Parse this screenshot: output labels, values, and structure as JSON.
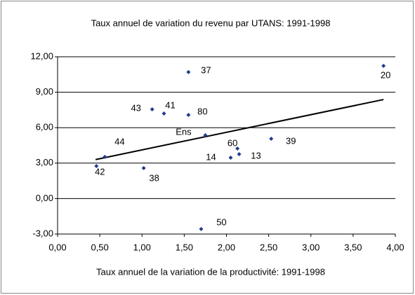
{
  "chart_data": {
    "type": "scatter",
    "title": "Taux annuel de variation du revenu par UTANS: 1991-1998",
    "x_label": "Taux annuel de la variation de la productivité: 1991-1998",
    "x": [
      0.46,
      0.56,
      1.02,
      1.12,
      1.26,
      1.55,
      1.55,
      1.75,
      1.7,
      2.05,
      2.13,
      2.15,
      2.53,
      3.86
    ],
    "values": [
      2.75,
      3.53,
      2.58,
      7.55,
      7.2,
      10.7,
      7.08,
      5.36,
      -2.58,
      3.46,
      4.23,
      3.76,
      5.06,
      11.23
    ],
    "labels": [
      "42",
      "44",
      "38",
      "43",
      "41",
      "37",
      "80",
      "Ens",
      "50",
      "14",
      "60",
      "13",
      "39",
      "20"
    ],
    "color": "#1f3d8c",
    "trendline": {
      "x": [
        0.45,
        3.86
      ],
      "values": [
        3.3,
        8.38
      ],
      "color": "#000000"
    },
    "xlim": [
      0,
      4
    ],
    "xticks": [
      {
        "value": 0,
        "label": "0,00"
      },
      {
        "value": 0.5,
        "label": "0,50"
      },
      {
        "value": 1,
        "label": "1,00"
      },
      {
        "value": 1.5,
        "label": "1,50"
      },
      {
        "value": 2,
        "label": "2,00"
      },
      {
        "value": 2.5,
        "label": "2,50"
      },
      {
        "value": 3,
        "label": "3,00"
      },
      {
        "value": 3.5,
        "label": "3,50"
      },
      {
        "value": 4,
        "label": "4,00"
      }
    ],
    "ylim": [
      -3,
      12
    ],
    "yticks": [
      {
        "value": -3,
        "label": "-3,00"
      },
      {
        "value": 0,
        "label": "0,00"
      },
      {
        "value": 3,
        "label": "3,00"
      },
      {
        "value": 6,
        "label": "6,00"
      },
      {
        "value": 9,
        "label": "9,00"
      },
      {
        "value": 12,
        "label": "12,00"
      }
    ],
    "grid": true
  }
}
